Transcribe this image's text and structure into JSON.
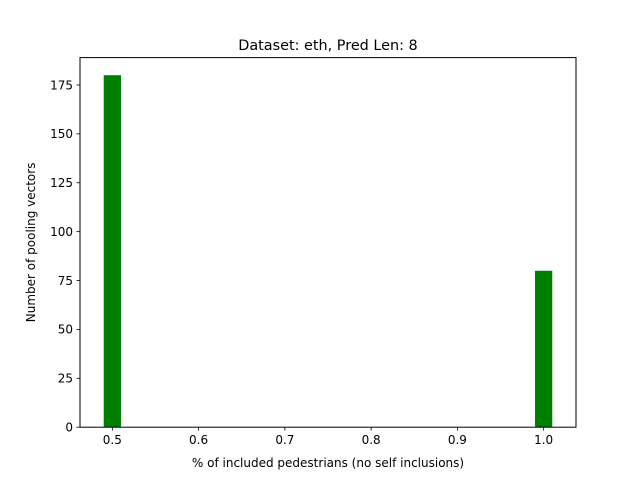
{
  "chart_data": {
    "type": "bar",
    "title": "Dataset: eth, Pred Len: 8",
    "xlabel": "% of included pedestrians (no self inclusions)",
    "ylabel": "Number of pooling vectors",
    "xlim": [
      0.4625,
      1.0375
    ],
    "ylim": [
      0,
      189
    ],
    "xticks": [
      0.5,
      0.6,
      0.7,
      0.8,
      0.9,
      1.0
    ],
    "xtick_labels": [
      "0.5",
      "0.6",
      "0.7",
      "0.8",
      "0.9",
      "1.0"
    ],
    "yticks": [
      0,
      25,
      50,
      75,
      100,
      125,
      150,
      175
    ],
    "ytick_labels": [
      "0",
      "25",
      "50",
      "75",
      "100",
      "125",
      "150",
      "175"
    ],
    "bin_width": 0.02,
    "bars": [
      {
        "x": 0.5,
        "value": 180
      },
      {
        "x": 1.0,
        "value": 80
      }
    ],
    "bar_color": "#008000",
    "grid": false,
    "legend": "none"
  }
}
